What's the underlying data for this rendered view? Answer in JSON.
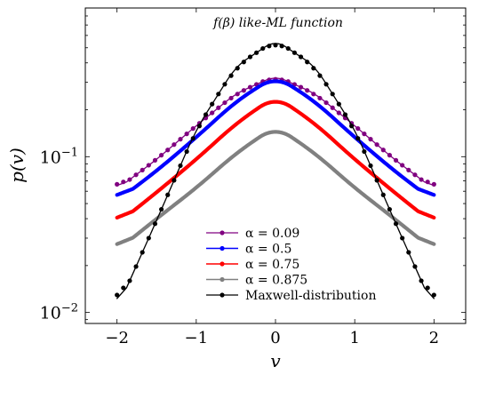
{
  "chart_data": {
    "type": "line",
    "title": "f(β) like-ML function",
    "xlabel": "v",
    "ylabel": "p(v)",
    "xlim": [
      -2.4,
      2.4
    ],
    "ylim": [
      0.0085,
      0.9
    ],
    "yscale": "log",
    "grid": false,
    "legend_position": "bottom-center",
    "x_ticks": [
      {
        "value": -2,
        "label": "−2"
      },
      {
        "value": -1,
        "label": "−1"
      },
      {
        "value": 0,
        "label": "0"
      },
      {
        "value": 1,
        "label": "1"
      },
      {
        "value": 2,
        "label": "2"
      }
    ],
    "y_ticks": [
      {
        "value": 0.01,
        "base": "10",
        "exp": "−2"
      },
      {
        "value": 0.1,
        "base": "10",
        "exp": "−1"
      }
    ],
    "series": [
      {
        "name": "α = 0.09",
        "color": "#800080",
        "markers": true,
        "x": [
          -2,
          -1.5,
          -1,
          -0.5,
          0,
          0.5,
          1,
          1.5,
          2
        ],
        "y": [
          0.062,
          0.096,
          0.158,
          0.254,
          0.33,
          0.254,
          0.158,
          0.096,
          0.062
        ]
      },
      {
        "name": "α = 0.5",
        "color": "#0000ff",
        "markers": false,
        "x": [
          -2,
          -1.5,
          -1,
          -0.5,
          0,
          0.5,
          1,
          1.5,
          2
        ],
        "y": [
          0.052,
          0.081,
          0.133,
          0.226,
          0.33,
          0.226,
          0.133,
          0.081,
          0.052
        ]
      },
      {
        "name": "α = 0.75",
        "color": "#ff0000",
        "markers": false,
        "x": [
          -2,
          -1.5,
          -1,
          -0.5,
          0,
          0.5,
          1,
          1.5,
          2
        ],
        "y": [
          0.037,
          0.059,
          0.096,
          0.163,
          0.245,
          0.163,
          0.096,
          0.059,
          0.037
        ]
      },
      {
        "name": "α = 0.875",
        "color": "#808080",
        "markers": false,
        "x": [
          -2,
          -1.5,
          -1,
          -0.5,
          0,
          0.5,
          1,
          1.5,
          2
        ],
        "y": [
          0.025,
          0.04,
          0.063,
          0.105,
          0.157,
          0.105,
          0.063,
          0.04,
          0.025
        ]
      },
      {
        "name": "Maxwell-distribution",
        "color": "#000000",
        "markers": true,
        "x": [
          -2,
          -1.5,
          -1,
          -0.5,
          0,
          0.5,
          1,
          1.5,
          2
        ],
        "y": [
          0.0105,
          0.039,
          0.15,
          0.38,
          0.56,
          0.38,
          0.15,
          0.039,
          0.0105
        ]
      }
    ]
  }
}
